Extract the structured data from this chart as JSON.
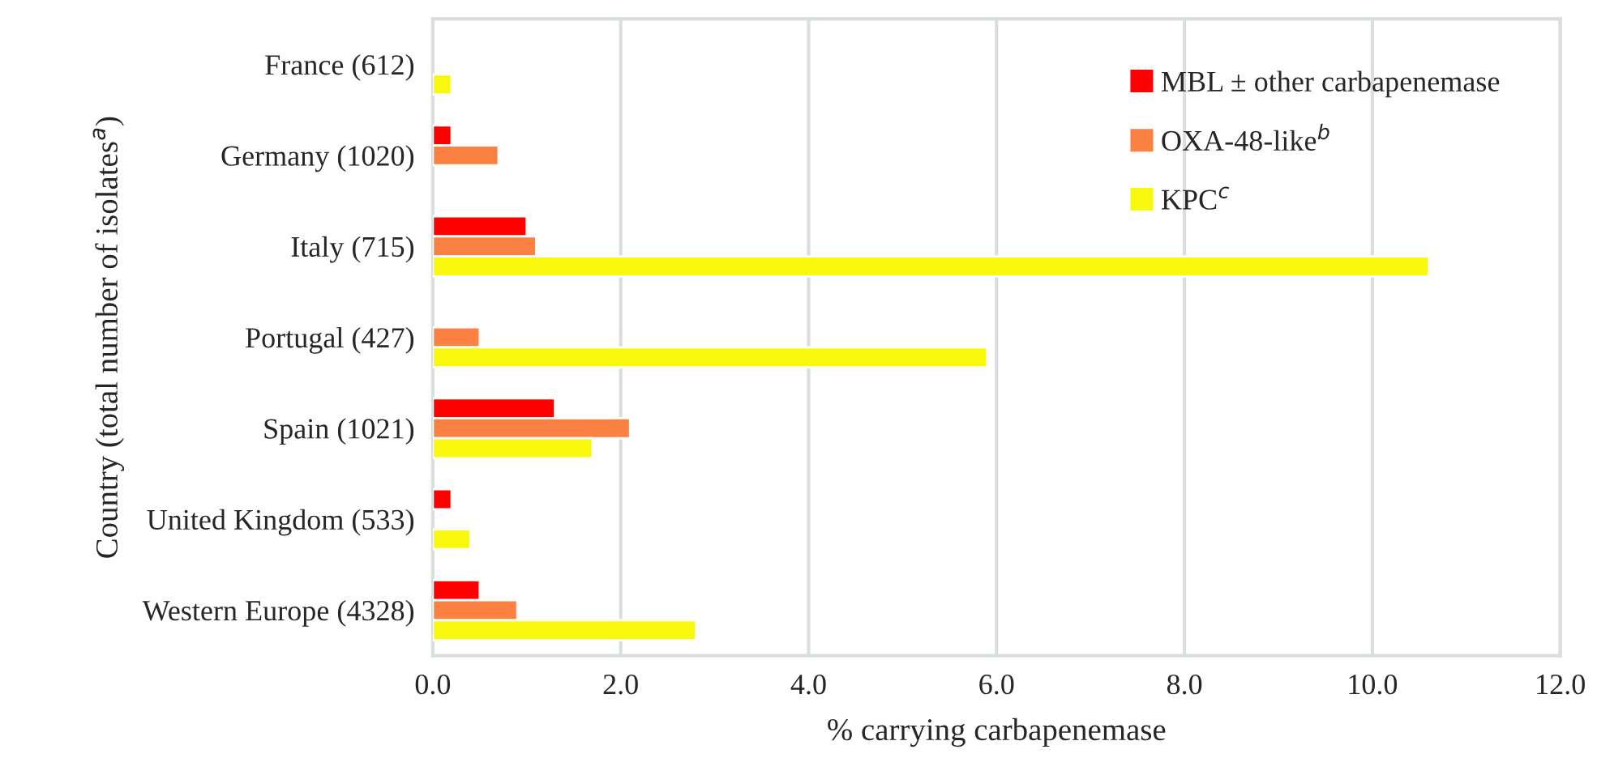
{
  "chart_data": {
    "type": "bar",
    "orientation": "horizontal",
    "categories": [
      "France (612)",
      "Germany (1020)",
      "Italy (715)",
      "Portugal (427)",
      "Spain (1021)",
      "United Kingdom (533)",
      "Western Europe (4328)"
    ],
    "series": [
      {
        "name": "MBL ± other carbapenemase",
        "color": "#ff0000",
        "values": [
          null,
          0.2,
          1.0,
          null,
          1.3,
          0.2,
          0.5
        ]
      },
      {
        "name": "OXA-48-like$^{b}$",
        "color": "#fb8142",
        "values": [
          null,
          0.7,
          1.1,
          0.5,
          2.1,
          null,
          0.9
        ]
      },
      {
        "name": "KPC$^{c}$",
        "color": "#f8f80c",
        "values": [
          0.2,
          null,
          10.6,
          5.9,
          1.7,
          0.4,
          2.8
        ]
      }
    ],
    "xlabel": "% carrying carbapenemase",
    "ylabel": "Country (total number of isolates$^{a}$)",
    "xlim": [
      0,
      12
    ],
    "xticks": [
      {
        "value": 0,
        "label": "0.0"
      },
      {
        "value": 2,
        "label": "2.0"
      },
      {
        "value": 4,
        "label": "4.0"
      },
      {
        "value": 6,
        "label": "6.0"
      },
      {
        "value": 8,
        "label": "8.0"
      },
      {
        "value": 10,
        "label": "10.0"
      },
      {
        "value": 12,
        "label": "12.0"
      }
    ],
    "grid": "x",
    "legend": "top right"
  }
}
